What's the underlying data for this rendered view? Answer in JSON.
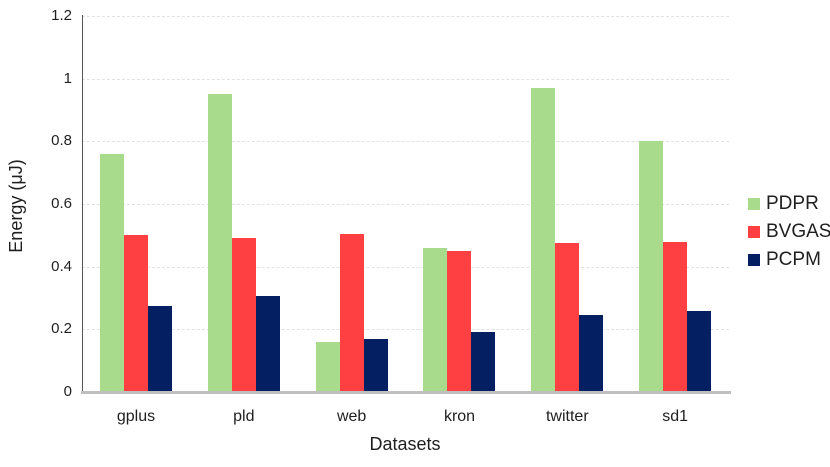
{
  "chart_data": {
    "type": "bar",
    "title": "",
    "xlabel": "Datasets",
    "ylabel": "Energy (μJ)",
    "categories": [
      "gplus",
      "pld",
      "web",
      "kron",
      "twitter",
      "sd1"
    ],
    "series": [
      {
        "name": "PDPR",
        "color": "#a8db8c",
        "values": [
          0.76,
          0.95,
          0.16,
          0.46,
          0.97,
          0.8
        ]
      },
      {
        "name": "BVGAS",
        "color": "#ff4042",
        "values": [
          0.5,
          0.49,
          0.505,
          0.45,
          0.475,
          0.48
        ]
      },
      {
        "name": "PCPM",
        "color": "#042063",
        "values": [
          0.275,
          0.305,
          0.17,
          0.19,
          0.245,
          0.26
        ]
      }
    ],
    "ylim": [
      0,
      1.2
    ],
    "yticks": [
      {
        "v": 0,
        "label": "0"
      },
      {
        "v": 0.2,
        "label": "0.2"
      },
      {
        "v": 0.4,
        "label": "0.4"
      },
      {
        "v": 0.6,
        "label": "0.6"
      },
      {
        "v": 0.8,
        "label": "0.8"
      },
      {
        "v": 1,
        "label": "1"
      },
      {
        "v": 1.2,
        "label": "1.2"
      }
    ],
    "grid": "dashed-horizontal",
    "legend_position": "right",
    "legend_labels": [
      "PDPR",
      "BVGAS",
      "PCPM"
    ]
  },
  "colors": {
    "background": "#ffffff",
    "axis_line": "#555555",
    "baseline": "#bfbfbf",
    "gridline": "#e2e2e2",
    "text": "#1f1f1f"
  }
}
